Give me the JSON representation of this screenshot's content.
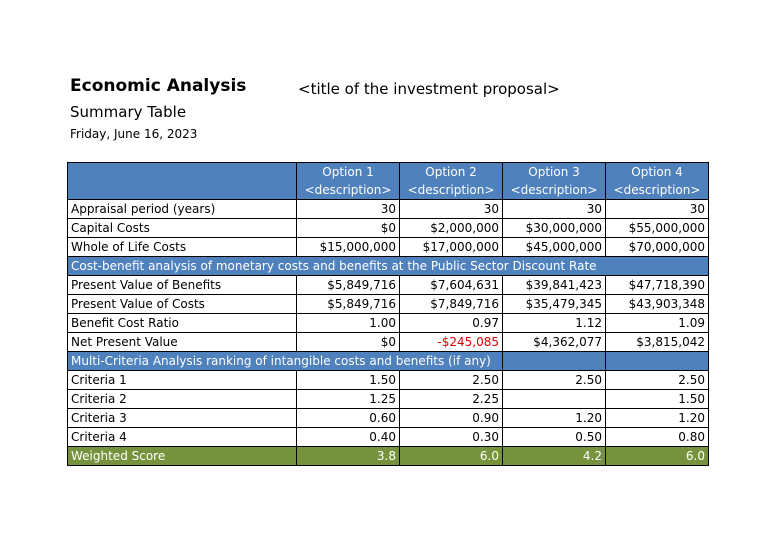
{
  "header": {
    "title": "Economic Analysis",
    "subtitle": "Summary Table",
    "date": "Friday, June 16, 2023",
    "proposal": "<title of the investment proposal>"
  },
  "table": {
    "options": [
      {
        "name": "Option 1",
        "desc": "<description>"
      },
      {
        "name": "Option 2",
        "desc": "<description>"
      },
      {
        "name": "Option 3",
        "desc": "<description>"
      },
      {
        "name": "Option 4",
        "desc": "<description>"
      }
    ],
    "basic_rows": [
      {
        "label": "Appraisal period (years)",
        "values": [
          "30",
          "30",
          "30",
          "30"
        ]
      },
      {
        "label": "Capital Costs",
        "values": [
          "$0",
          "$2,000,000",
          "$30,000,000",
          "$55,000,000"
        ]
      },
      {
        "label": "Whole of Life Costs",
        "values": [
          "$15,000,000",
          "$17,000,000",
          "$45,000,000",
          "$70,000,000"
        ]
      }
    ],
    "section1": "Cost-benefit analysis of monetary costs and benefits at the Public Sector Discount Rate",
    "cba_rows": [
      {
        "label": "Present Value of Benefits",
        "values": [
          "$5,849,716",
          "$7,604,631",
          "$39,841,423",
          "$47,718,390"
        ]
      },
      {
        "label": "Present Value of Costs",
        "values": [
          "$5,849,716",
          "$7,849,716",
          "$35,479,345",
          "$43,903,348"
        ]
      },
      {
        "label": "Benefit Cost Ratio",
        "values": [
          "1.00",
          "0.97",
          "1.12",
          "1.09"
        ]
      },
      {
        "label": "Net Present Value",
        "values": [
          "$0",
          "-$245,085",
          "$4,362,077",
          "$3,815,042"
        ]
      }
    ],
    "section2": "Multi-Criteria Analysis ranking of intangible costs and benefits (if any)",
    "mca_rows": [
      {
        "label": "Criteria 1",
        "values": [
          "1.50",
          "2.50",
          "2.50",
          "2.50"
        ]
      },
      {
        "label": "Criteria 2",
        "values": [
          "1.25",
          "2.25",
          "",
          "1.50"
        ]
      },
      {
        "label": "Criteria 3",
        "values": [
          "0.60",
          "0.90",
          "1.20",
          "1.20"
        ]
      },
      {
        "label": "Criteria 4",
        "values": [
          "0.40",
          "0.30",
          "0.50",
          "0.80"
        ]
      }
    ],
    "score": {
      "label": "Weighted Score",
      "values": [
        "3.8",
        "6.0",
        "4.2",
        "6.0"
      ]
    }
  },
  "colors": {
    "header_blue": "#4f81bd",
    "score_green": "#76923c",
    "negative": "#e00000"
  }
}
